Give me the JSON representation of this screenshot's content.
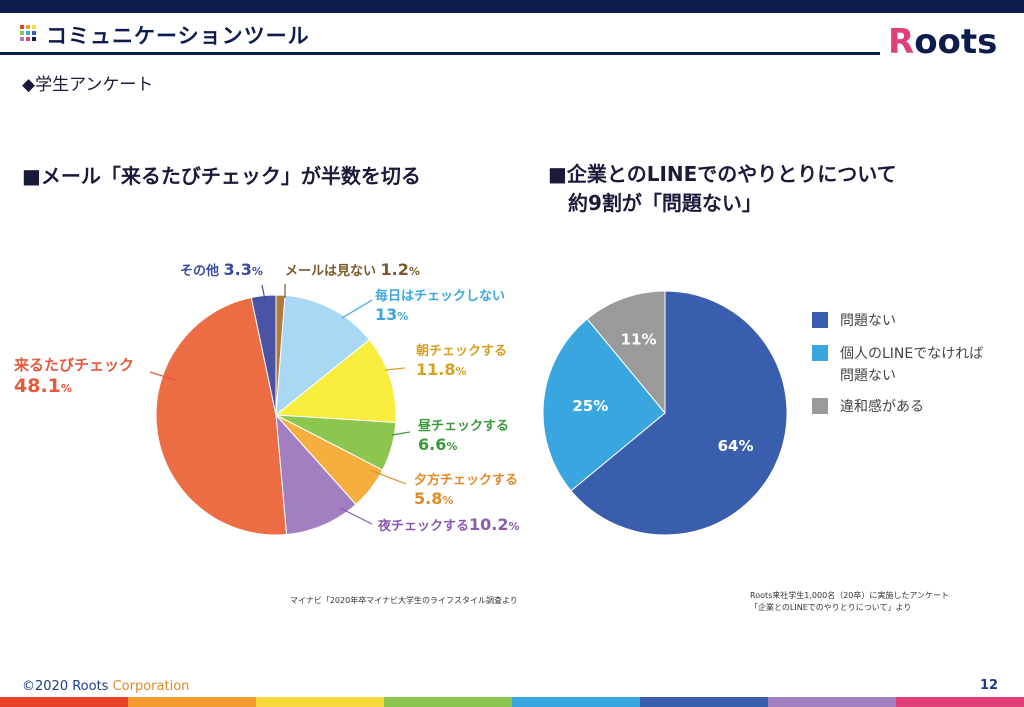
{
  "header": {
    "title": "コミュニケーションツール",
    "logo_text": "Roots"
  },
  "subtitle": "◆学生アンケート",
  "left": {
    "heading": "■メール「来るたびチェック」が半数を切る"
  },
  "right": {
    "heading_line1": "■企業とのLINEでのやりとりについて",
    "heading_line2": "約9割が「問題ない」"
  },
  "chart_data": [
    {
      "type": "pie",
      "slices": [
        {
          "label": "メールは見ない",
          "value": 1.2,
          "display": "1.2",
          "color": "#b07a3a"
        },
        {
          "label": "毎日はチェックしない",
          "value": 13,
          "display": "13",
          "color": "#a8d8f4"
        },
        {
          "label": "朝チェックする",
          "value": 11.8,
          "display": "11.8",
          "color": "#f8ec3c"
        },
        {
          "label": "昼チェックする",
          "value": 6.6,
          "display": "6.6",
          "color": "#8cc64e"
        },
        {
          "label": "夕方チェックする",
          "value": 5.8,
          "display": "5.8",
          "color": "#f6ae3e"
        },
        {
          "label": "夜チェックする",
          "value": 10.2,
          "display": "10.2",
          "color": "#a27fc0"
        },
        {
          "label": "来るたびチェック",
          "value": 48.1,
          "display": "48.1",
          "color": "#ec6c44"
        },
        {
          "label": "その他",
          "value": 3.3,
          "display": "3.3",
          "color": "#4a53a4"
        }
      ],
      "unit": "%"
    },
    {
      "type": "pie",
      "slices": [
        {
          "label": "問題ない",
          "value": 64,
          "display": "64%",
          "color": "#3a5eae"
        },
        {
          "label": "個人のLINEでなければ問題ない",
          "value": 25,
          "display": "25%",
          "color": "#3aa6e0"
        },
        {
          "label": "違和感がある",
          "value": 11,
          "display": "11%",
          "color": "#9a9a9a"
        }
      ],
      "legend": [
        "問題ない",
        "個人のLINEでなければ",
        "問題ない",
        "違和感がある"
      ]
    }
  ],
  "sources": {
    "left": "マイナビ「2020年卒マイナビ大学生のライフスタイル調査より",
    "right_line1": "Roots来社学生1,000名（20卒）に実施したアンケート",
    "right_line2": "「企業とのLINEでのやりとりについて」より"
  },
  "footer": {
    "copyright_a": "©2020 Roots",
    "copyright_b": "Corporation",
    "page": "12"
  },
  "colors": {
    "navy": "#0e1b4d",
    "stripe": [
      "#e8432a",
      "#f29a2e",
      "#f7d93c",
      "#8cc64e",
      "#3aa6e0",
      "#3a5eae",
      "#a27fc0",
      "#e0407a"
    ]
  }
}
